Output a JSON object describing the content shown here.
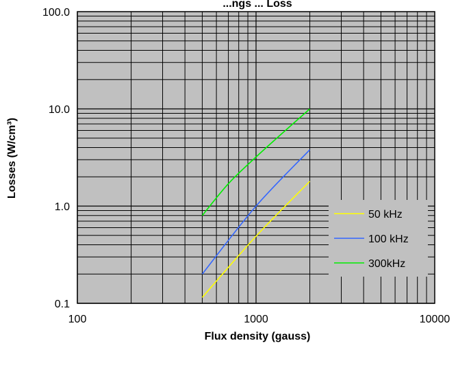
{
  "chart_data": {
    "type": "line",
    "title": "...ngs ... Loss",
    "xlabel": "Flux density (gauss)",
    "ylabel": "Losses (W/cm³)",
    "xscale": "log",
    "yscale": "log",
    "xlim": [
      100,
      10000
    ],
    "ylim": [
      0.1,
      100
    ],
    "x_tick_labels": [
      "100",
      "1000",
      "10000"
    ],
    "y_tick_labels": [
      "0.1",
      "1.0",
      "10.0",
      "100.0"
    ],
    "grid": true,
    "plot_background": "#c0c0c0",
    "legend_position": "lower-right",
    "series": [
      {
        "name": "50 kHz",
        "color": "#ffff00",
        "x": [
          500,
          1000,
          2000
        ],
        "y": [
          0.115,
          0.49,
          1.8
        ]
      },
      {
        "name": "100 kHz",
        "color": "#3366ff",
        "x": [
          500,
          1000,
          2000
        ],
        "y": [
          0.2,
          1.0,
          3.8
        ]
      },
      {
        "name": "300kHz",
        "color": "#00ee00",
        "x": [
          500,
          700,
          1000,
          1400,
          2000
        ],
        "y": [
          0.8,
          1.7,
          3.2,
          5.6,
          10.0
        ]
      }
    ]
  }
}
